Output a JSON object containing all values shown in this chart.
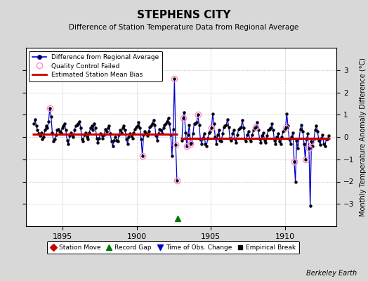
{
  "title": "STEPHENS CITY",
  "subtitle": "Difference of Station Temperature Data from Regional Average",
  "ylabel": "Monthly Temperature Anomaly Difference (°C)",
  "xlim": [
    1892.5,
    1913.5
  ],
  "ylim": [
    -4,
    4
  ],
  "yticks": [
    -3,
    -2,
    -1,
    0,
    1,
    2,
    3
  ],
  "xticks": [
    1895,
    1900,
    1905,
    1910
  ],
  "fig_bg_color": "#d8d8d8",
  "plot_bg_color": "#ffffff",
  "grid_color": "#c8c8c8",
  "line_color": "#0000cc",
  "marker_color": "#000000",
  "bias_color": "#cc0000",
  "qc_color": "#ff88cc",
  "gap_marker_color": "#007700",
  "watermark": "Berkeley Earth",
  "segment1_bias": 0.13,
  "segment2_bias": -0.05,
  "gap_x": 1902.75,
  "seg1_x_start": 1892.96,
  "seg1_x_end": 1902.75,
  "seg2_x_start": 1902.96,
  "seg2_x_end": 1913.04,
  "time_series": [
    [
      1893.042,
      0.6
    ],
    [
      1893.125,
      0.8
    ],
    [
      1893.208,
      0.5
    ],
    [
      1893.292,
      0.3
    ],
    [
      1893.375,
      0.15
    ],
    [
      1893.458,
      0.05
    ],
    [
      1893.542,
      0.2
    ],
    [
      1893.625,
      -0.1
    ],
    [
      1893.708,
      0.0
    ],
    [
      1893.792,
      0.3
    ],
    [
      1893.875,
      0.5
    ],
    [
      1893.958,
      0.4
    ],
    [
      1894.042,
      0.7
    ],
    [
      1894.125,
      1.3
    ],
    [
      1894.208,
      0.9
    ],
    [
      1894.292,
      0.2
    ],
    [
      1894.375,
      -0.2
    ],
    [
      1894.458,
      -0.1
    ],
    [
      1894.542,
      0.1
    ],
    [
      1894.625,
      0.3
    ],
    [
      1894.708,
      0.35
    ],
    [
      1894.792,
      0.25
    ],
    [
      1894.875,
      0.2
    ],
    [
      1894.958,
      0.4
    ],
    [
      1895.042,
      0.5
    ],
    [
      1895.125,
      0.6
    ],
    [
      1895.208,
      0.3
    ],
    [
      1895.292,
      -0.15
    ],
    [
      1895.375,
      -0.3
    ],
    [
      1895.458,
      0.05
    ],
    [
      1895.542,
      0.2
    ],
    [
      1895.625,
      0.1
    ],
    [
      1895.708,
      0.0
    ],
    [
      1895.792,
      0.3
    ],
    [
      1895.875,
      0.5
    ],
    [
      1895.958,
      0.55
    ],
    [
      1896.042,
      0.6
    ],
    [
      1896.125,
      0.7
    ],
    [
      1896.208,
      0.4
    ],
    [
      1896.292,
      -0.1
    ],
    [
      1896.375,
      -0.2
    ],
    [
      1896.458,
      0.1
    ],
    [
      1896.542,
      0.2
    ],
    [
      1896.625,
      0.0
    ],
    [
      1896.708,
      -0.1
    ],
    [
      1896.792,
      0.2
    ],
    [
      1896.875,
      0.4
    ],
    [
      1896.958,
      0.5
    ],
    [
      1897.042,
      0.3
    ],
    [
      1897.125,
      0.6
    ],
    [
      1897.208,
      0.4
    ],
    [
      1897.292,
      -0.05
    ],
    [
      1897.375,
      -0.25
    ],
    [
      1897.458,
      -0.05
    ],
    [
      1897.542,
      0.15
    ],
    [
      1897.625,
      0.1
    ],
    [
      1897.708,
      -0.05
    ],
    [
      1897.792,
      0.1
    ],
    [
      1897.875,
      0.35
    ],
    [
      1897.958,
      0.25
    ],
    [
      1898.042,
      0.4
    ],
    [
      1898.125,
      0.5
    ],
    [
      1898.208,
      0.15
    ],
    [
      1898.292,
      -0.2
    ],
    [
      1898.375,
      -0.4
    ],
    [
      1898.458,
      -0.15
    ],
    [
      1898.542,
      0.0
    ],
    [
      1898.625,
      -0.15
    ],
    [
      1898.708,
      -0.2
    ],
    [
      1898.792,
      0.1
    ],
    [
      1898.875,
      0.3
    ],
    [
      1898.958,
      0.2
    ],
    [
      1899.042,
      0.4
    ],
    [
      1899.125,
      0.5
    ],
    [
      1899.208,
      0.3
    ],
    [
      1899.292,
      -0.1
    ],
    [
      1899.375,
      -0.3
    ],
    [
      1899.458,
      0.0
    ],
    [
      1899.542,
      0.15
    ],
    [
      1899.625,
      0.05
    ],
    [
      1899.708,
      -0.05
    ],
    [
      1899.792,
      0.2
    ],
    [
      1899.875,
      0.35
    ],
    [
      1899.958,
      0.45
    ],
    [
      1900.042,
      0.5
    ],
    [
      1900.125,
      0.65
    ],
    [
      1900.208,
      0.4
    ],
    [
      1900.292,
      -0.1
    ],
    [
      1900.375,
      -0.85
    ],
    [
      1900.458,
      0.1
    ],
    [
      1900.542,
      0.25
    ],
    [
      1900.625,
      0.15
    ],
    [
      1900.708,
      0.05
    ],
    [
      1900.792,
      0.25
    ],
    [
      1900.875,
      0.45
    ],
    [
      1900.958,
      0.5
    ],
    [
      1901.042,
      0.6
    ],
    [
      1901.125,
      0.75
    ],
    [
      1901.208,
      0.55
    ],
    [
      1901.292,
      0.05
    ],
    [
      1901.375,
      -0.15
    ],
    [
      1901.458,
      0.15
    ],
    [
      1901.542,
      0.35
    ],
    [
      1901.625,
      0.3
    ],
    [
      1901.708,
      0.15
    ],
    [
      1901.792,
      0.4
    ],
    [
      1901.875,
      0.55
    ],
    [
      1901.958,
      0.6
    ],
    [
      1902.042,
      0.7
    ],
    [
      1902.125,
      0.85
    ],
    [
      1902.208,
      0.6
    ],
    [
      1902.292,
      0.1
    ],
    [
      1902.375,
      -0.85
    ],
    [
      1902.458,
      0.35
    ],
    [
      1902.542,
      2.6
    ],
    [
      1902.625,
      -0.35
    ],
    [
      1902.708,
      -1.95
    ],
    [
      1903.042,
      -0.15
    ],
    [
      1903.125,
      0.85
    ],
    [
      1903.208,
      1.1
    ],
    [
      1903.292,
      0.2
    ],
    [
      1903.375,
      -0.4
    ],
    [
      1903.458,
      0.1
    ],
    [
      1903.542,
      0.55
    ],
    [
      1903.625,
      -0.3
    ],
    [
      1903.708,
      -0.25
    ],
    [
      1903.792,
      0.15
    ],
    [
      1903.875,
      0.6
    ],
    [
      1903.958,
      0.6
    ],
    [
      1904.042,
      0.65
    ],
    [
      1904.125,
      1.0
    ],
    [
      1904.208,
      0.55
    ],
    [
      1904.292,
      -0.1
    ],
    [
      1904.375,
      -0.3
    ],
    [
      1904.458,
      -0.05
    ],
    [
      1904.542,
      0.15
    ],
    [
      1904.625,
      -0.3
    ],
    [
      1904.708,
      -0.4
    ],
    [
      1904.792,
      -0.05
    ],
    [
      1904.875,
      0.2
    ],
    [
      1904.958,
      0.25
    ],
    [
      1905.042,
      0.4
    ],
    [
      1905.125,
      1.05
    ],
    [
      1905.208,
      0.6
    ],
    [
      1905.292,
      0.0
    ],
    [
      1905.375,
      -0.3
    ],
    [
      1905.458,
      0.1
    ],
    [
      1905.542,
      0.3
    ],
    [
      1905.625,
      -0.15
    ],
    [
      1905.708,
      -0.2
    ],
    [
      1905.792,
      0.15
    ],
    [
      1905.875,
      0.45
    ],
    [
      1905.958,
      0.5
    ],
    [
      1906.042,
      0.55
    ],
    [
      1906.125,
      0.8
    ],
    [
      1906.208,
      0.45
    ],
    [
      1906.292,
      -0.05
    ],
    [
      1906.375,
      -0.15
    ],
    [
      1906.458,
      0.15
    ],
    [
      1906.542,
      0.3
    ],
    [
      1906.625,
      -0.1
    ],
    [
      1906.708,
      -0.25
    ],
    [
      1906.792,
      0.1
    ],
    [
      1906.875,
      0.35
    ],
    [
      1906.958,
      0.4
    ],
    [
      1907.042,
      0.45
    ],
    [
      1907.125,
      0.75
    ],
    [
      1907.208,
      0.4
    ],
    [
      1907.292,
      -0.1
    ],
    [
      1907.375,
      -0.2
    ],
    [
      1907.458,
      0.1
    ],
    [
      1907.542,
      0.25
    ],
    [
      1907.625,
      -0.1
    ],
    [
      1907.708,
      -0.2
    ],
    [
      1907.792,
      0.1
    ],
    [
      1907.875,
      0.3
    ],
    [
      1907.958,
      0.4
    ],
    [
      1908.042,
      0.45
    ],
    [
      1908.125,
      0.65
    ],
    [
      1908.208,
      0.3
    ],
    [
      1908.292,
      -0.1
    ],
    [
      1908.375,
      -0.25
    ],
    [
      1908.458,
      0.05
    ],
    [
      1908.542,
      0.2
    ],
    [
      1908.625,
      -0.15
    ],
    [
      1908.708,
      -0.25
    ],
    [
      1908.792,
      0.05
    ],
    [
      1908.875,
      0.3
    ],
    [
      1908.958,
      0.35
    ],
    [
      1909.042,
      0.4
    ],
    [
      1909.125,
      0.6
    ],
    [
      1909.208,
      0.3
    ],
    [
      1909.292,
      -0.15
    ],
    [
      1909.375,
      -0.3
    ],
    [
      1909.458,
      0.0
    ],
    [
      1909.542,
      0.15
    ],
    [
      1909.625,
      -0.2
    ],
    [
      1909.708,
      -0.3
    ],
    [
      1909.792,
      0.0
    ],
    [
      1909.875,
      0.25
    ],
    [
      1909.958,
      0.3
    ],
    [
      1910.042,
      0.4
    ],
    [
      1910.125,
      1.05
    ],
    [
      1910.208,
      0.5
    ],
    [
      1910.292,
      -0.1
    ],
    [
      1910.375,
      -0.3
    ],
    [
      1910.458,
      0.0
    ],
    [
      1910.542,
      0.2
    ],
    [
      1910.625,
      -1.1
    ],
    [
      1910.708,
      -2.0
    ],
    [
      1910.792,
      -0.15
    ],
    [
      1910.875,
      -0.5
    ],
    [
      1911.042,
      0.35
    ],
    [
      1911.125,
      0.55
    ],
    [
      1911.208,
      0.25
    ],
    [
      1911.292,
      -0.3
    ],
    [
      1911.375,
      -1.0
    ],
    [
      1911.458,
      -0.1
    ],
    [
      1911.542,
      0.15
    ],
    [
      1911.625,
      -0.5
    ],
    [
      1911.708,
      -3.1
    ],
    [
      1911.792,
      -0.2
    ],
    [
      1911.875,
      -0.4
    ],
    [
      1911.958,
      -0.1
    ],
    [
      1912.042,
      0.3
    ],
    [
      1912.125,
      0.5
    ],
    [
      1912.208,
      0.25
    ],
    [
      1912.292,
      -0.15
    ],
    [
      1912.375,
      -0.35
    ],
    [
      1912.458,
      -0.05
    ],
    [
      1912.542,
      0.1
    ],
    [
      1912.625,
      -0.3
    ],
    [
      1912.708,
      -0.4
    ],
    [
      1912.792,
      -0.1
    ],
    [
      1912.875,
      -0.1
    ],
    [
      1912.958,
      0.05
    ]
  ],
  "qc_points": [
    [
      1894.125,
      1.3
    ],
    [
      1900.375,
      -0.85
    ],
    [
      1902.542,
      2.6
    ],
    [
      1902.625,
      -0.35
    ],
    [
      1902.708,
      -1.95
    ],
    [
      1903.125,
      0.85
    ],
    [
      1903.375,
      -0.4
    ],
    [
      1903.625,
      -0.3
    ],
    [
      1904.125,
      1.0
    ],
    [
      1905.042,
      0.4
    ],
    [
      1908.042,
      0.45
    ],
    [
      1910.042,
      0.4
    ],
    [
      1910.625,
      -1.1
    ],
    [
      1911.375,
      -1.0
    ],
    [
      1911.625,
      -0.5
    ],
    [
      1911.792,
      -0.2
    ]
  ]
}
